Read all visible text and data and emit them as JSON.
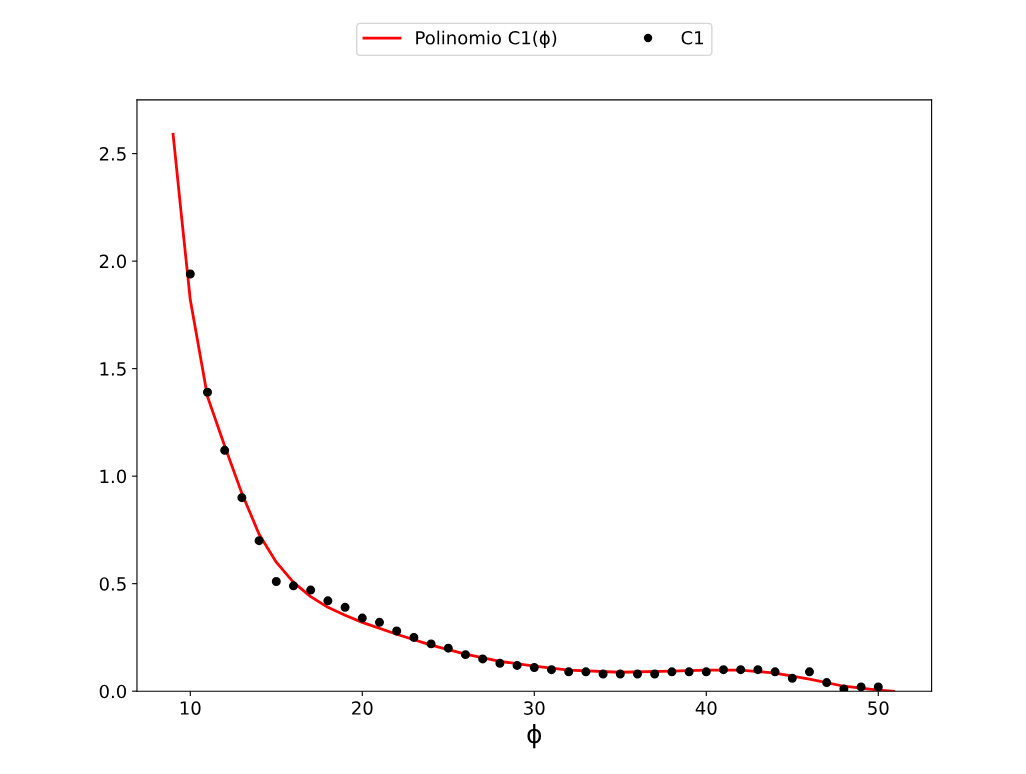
{
  "chart_data": {
    "type": "scatter",
    "xlabel": "ϕ",
    "series": [
      {
        "name": "Polinomio C1(ϕ)",
        "type": "line",
        "color": "#ff0000",
        "marker": "none",
        "line_style": "solid",
        "x": [
          9,
          9.5,
          10,
          11,
          12,
          13,
          14,
          15,
          16,
          17,
          18,
          19,
          20,
          22,
          24,
          26,
          28,
          30,
          32,
          35,
          38,
          40,
          42,
          44,
          46,
          48,
          50,
          50.9
        ],
        "values": [
          2.59,
          2.2,
          1.82,
          1.37,
          1.14,
          0.92,
          0.73,
          0.6,
          0.506,
          0.44,
          0.39,
          0.353,
          0.32,
          0.265,
          0.214,
          0.172,
          0.139,
          0.116,
          0.098,
          0.088,
          0.093,
          0.098,
          0.098,
          0.084,
          0.056,
          0.023,
          0.005,
          0
        ]
      },
      {
        "name": "C1",
        "color": "#000000",
        "marker": "circle",
        "x": [
          10,
          11,
          12,
          13,
          14,
          15,
          16,
          17,
          18,
          19,
          20,
          21,
          22,
          23,
          24,
          25,
          26,
          27,
          28,
          29,
          30,
          31,
          32,
          33,
          34,
          35,
          36,
          37,
          38,
          39,
          40,
          41,
          42,
          43,
          44,
          45,
          46,
          47,
          48,
          49,
          50
        ],
        "values": [
          1.94,
          1.39,
          1.12,
          0.9,
          0.7,
          0.51,
          0.49,
          0.47,
          0.42,
          0.39,
          0.34,
          0.32,
          0.28,
          0.25,
          0.22,
          0.2,
          0.17,
          0.15,
          0.13,
          0.12,
          0.11,
          0.1,
          0.09,
          0.09,
          0.08,
          0.08,
          0.08,
          0.08,
          0.09,
          0.09,
          0.09,
          0.1,
          0.1,
          0.1,
          0.09,
          0.06,
          0.09,
          0.04,
          0.01,
          0.02,
          0.02
        ]
      }
    ],
    "xlim": [
      6.9,
      53.1
    ],
    "xticks": [
      10,
      20,
      30,
      40,
      50
    ],
    "ylim": [
      0,
      2.75
    ],
    "yticks": [
      {
        "value": 0,
        "label": "0.0"
      },
      {
        "value": 0.5,
        "label": "0.5"
      },
      {
        "value": 1,
        "label": "1.0"
      },
      {
        "value": 1.5,
        "label": "1.5"
      },
      {
        "value": 2,
        "label": "2.0"
      },
      {
        "value": 2.5,
        "label": "2.5"
      }
    ],
    "grid": false,
    "legend": "top"
  }
}
